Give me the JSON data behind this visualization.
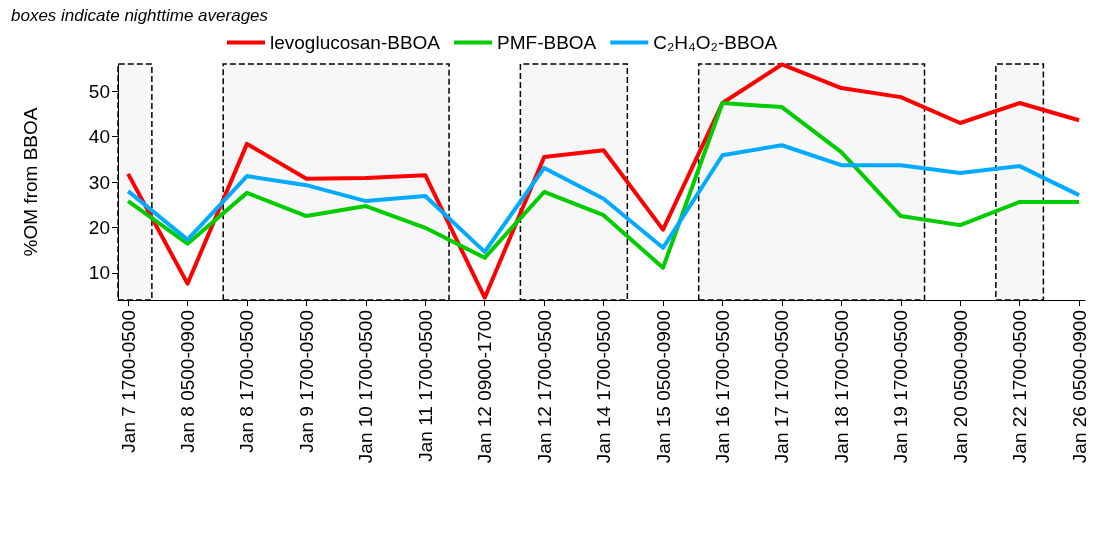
{
  "chart_data": {
    "type": "line",
    "title": "boxes indicate nighttime averages",
    "ylabel": "%OM from BBOA",
    "categories": [
      "Jan 7 1700-0500",
      "Jan 8 0500-0900",
      "Jan 8 1700-0500",
      "Jan 9 1700-0500",
      "Jan 10 1700-0500",
      "Jan 11 1700-0500",
      "Jan 12 0900-1700",
      "Jan 12 1700-0500",
      "Jan 14 1700-0500",
      "Jan 15 0500-0900",
      "Jan 16 1700-0500",
      "Jan 17 1700-0500",
      "Jan 18 1700-0500",
      "Jan 19 1700-0500",
      "Jan 20 0500-0900",
      "Jan 22 1700-0500",
      "Jan 26 0500-0900"
    ],
    "series": [
      {
        "name": "levoglucosan-BBOA",
        "color": "#ff0000",
        "values": [
          31.8,
          7.6,
          38.4,
          30.7,
          30.9,
          31.5,
          4.5,
          35.5,
          37,
          19.5,
          47.4,
          55.9,
          50.7,
          48.7,
          43,
          47.4,
          43.6
        ]
      },
      {
        "name": "PMF-BBOA",
        "color": "#00cc00",
        "values": [
          25.8,
          16.4,
          27.6,
          22.5,
          24.7,
          19.9,
          13.3,
          27.8,
          22.7,
          11.1,
          47.4,
          46.5,
          36.6,
          22.5,
          20.5,
          25.6,
          25.6
        ]
      },
      {
        "name": "C₂H₄O₂-BBOA",
        "color": "#00aaff",
        "values": [
          28,
          17.3,
          31.3,
          29.3,
          25.8,
          26.9,
          14.6,
          33.1,
          26.3,
          15.5,
          35.9,
          38.1,
          33.7,
          33.7,
          32,
          33.5,
          27.1
        ]
      }
    ],
    "ylim": [
      4,
      56
    ],
    "yticks": [
      10,
      20,
      30,
      40,
      50
    ],
    "grid": false,
    "legend": "top",
    "marker": "none",
    "line_style": "solid",
    "bands": [
      {
        "axis": "x",
        "from": "Jan 7 1700-0500",
        "to": "Jan 7 1700-0500"
      },
      {
        "axis": "x",
        "from": "Jan 8 1700-0500",
        "to": "Jan 11 1700-0500"
      },
      {
        "axis": "x",
        "from": "Jan 12 1700-0500",
        "to": "Jan 14 1700-0500"
      },
      {
        "axis": "x",
        "from": "Jan 16 1700-0500",
        "to": "Jan 19 1700-0500"
      },
      {
        "axis": "x",
        "from": "Jan 22 1700-0500",
        "to": "Jan 22 1700-0500"
      }
    ]
  }
}
